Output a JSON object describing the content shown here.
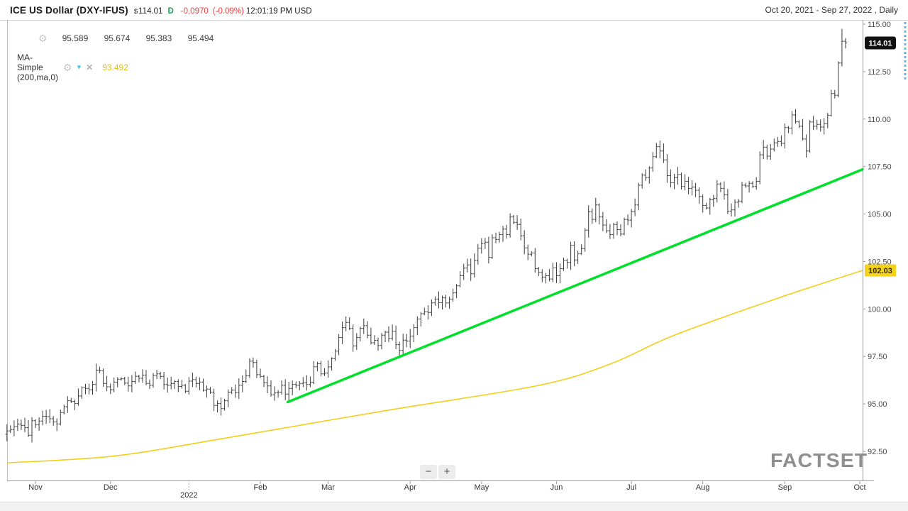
{
  "header": {
    "title": "ICE US Dollar (DXY-IFUS)",
    "currency_symbol": "$",
    "price": "114.01",
    "session_flag": "D",
    "change": "-0.0970",
    "change_pct": "(-0.09%)",
    "time": "12:01:19 PM USD",
    "range": "Oct 20, 2021 - Sep 27, 2022 , Daily"
  },
  "legend": {
    "ohlc": {
      "open": "95.589",
      "high": "95.674",
      "low": "95.383",
      "close": "95.494"
    },
    "ma": {
      "label": "MA-Simple (200,ma,0)",
      "value": "93.492"
    }
  },
  "controls": {
    "zoom_out": "−",
    "zoom_in": "+"
  },
  "watermark": "FACTSET",
  "colors": {
    "bar": "#3d3d3d",
    "trend_line": "#00e02a",
    "ma_line": "#f2cf1b",
    "last_badge_bg": "#111111",
    "last_badge_text": "#ffffff",
    "ma_badge_bg": "#f3d11c",
    "ma_badge_text": "#3a3000",
    "axis_line": "#9a9a9a",
    "axis_text": "#4a4a4a",
    "up_flag_green": "#18a557",
    "change_red": "#f23b3b",
    "scroll_indicator": "#5bb9e5"
  },
  "chart_data": {
    "type": "ohlc-bar",
    "title": "ICE US Dollar (DXY-IFUS)",
    "frequency": "Daily",
    "start": "Oct 20, 2021",
    "end": "Sep 27, 2022",
    "last_price": 114.01,
    "last_price_label": "114.01",
    "ma_last": 102.03,
    "ma_badge_label": "102.03",
    "ylim": [
      91.3,
      115.2
    ],
    "y_ticks": [
      115.0,
      112.5,
      110.0,
      107.5,
      105.0,
      102.5,
      100.0,
      97.5,
      95.0,
      92.5
    ],
    "x_ticks": [
      {
        "label": "Nov",
        "bar_index": 8,
        "is_year": false
      },
      {
        "label": "Dec",
        "bar_index": 29,
        "is_year": false
      },
      {
        "label": "2022",
        "bar_index": 51,
        "is_year": true
      },
      {
        "label": "Feb",
        "bar_index": 71,
        "is_year": false
      },
      {
        "label": "Mar",
        "bar_index": 90,
        "is_year": false
      },
      {
        "label": "Apr",
        "bar_index": 113,
        "is_year": false
      },
      {
        "label": "May",
        "bar_index": 133,
        "is_year": false
      },
      {
        "label": "Jun",
        "bar_index": 154,
        "is_year": false
      },
      {
        "label": "Jul",
        "bar_index": 175,
        "is_year": false
      },
      {
        "label": "Aug",
        "bar_index": 195,
        "is_year": false
      },
      {
        "label": "Sep",
        "bar_index": 218,
        "is_year": false
      },
      {
        "label": "Oct",
        "bar_index": 239,
        "is_year": false
      }
    ],
    "closes": [
      93.58,
      93.65,
      93.8,
      93.94,
      93.87,
      93.75,
      93.35,
      94.12,
      93.9,
      94.1,
      94.35,
      94.33,
      94.22,
      94.05,
      93.95,
      94.55,
      94.85,
      95.17,
      95.13,
      95.02,
      95.42,
      95.85,
      95.82,
      95.75,
      96.03,
      96.78,
      96.75,
      96.08,
      95.9,
      95.75,
      96.15,
      96.3,
      96.32,
      96.1,
      95.95,
      96.18,
      96.45,
      96.35,
      96.52,
      96.08,
      95.98,
      96.5,
      96.58,
      96.45,
      96.02,
      95.98,
      96.08,
      96.18,
      95.92,
      95.98,
      95.67,
      96.2,
      96.28,
      96.08,
      96.15,
      95.72,
      95.78,
      95.62,
      94.92,
      95.02,
      94.75,
      95.17,
      95.62,
      95.73,
      95.6,
      95.98,
      96.18,
      96.48,
      97.25,
      97.18,
      96.54,
      96.45,
      96.12,
      95.95,
      95.48,
      95.58,
      95.62,
      95.98,
      95.52,
      95.82,
      96.03,
      95.98,
      96.08,
      96.12,
      96.02,
      96.15,
      96.95,
      97.12,
      96.58,
      96.62,
      96.95,
      97.38,
      97.78,
      98.5,
      99.02,
      99.29,
      98.98,
      98.05,
      98.5,
      98.98,
      99.12,
      98.62,
      98.22,
      98.35,
      98.08,
      98.62,
      98.78,
      98.45,
      98.82,
      98.12,
      97.82,
      98.36,
      98.31,
      98.57,
      99.02,
      99.47,
      99.75,
      99.85,
      99.82,
      100.32,
      100.52,
      100.33,
      100.58,
      100.32,
      100.52,
      100.85,
      101.22,
      101.75,
      102.15,
      102.32,
      101.85,
      102.55,
      103.2,
      103.45,
      103.52,
      102.72,
      103.75,
      103.66,
      103.92,
      104.21,
      103.92,
      104.85,
      104.56,
      104.45,
      103.85,
      103.22,
      102.88,
      102.95,
      102.12,
      101.92,
      101.68,
      101.75,
      101.58,
      102.16,
      101.75,
      102.12,
      102.55,
      102.45,
      103.35,
      102.58,
      102.92,
      103.18,
      104.15,
      105.12,
      104.72,
      105.48,
      104.85,
      104.42,
      104.12,
      103.92,
      104.45,
      104.18,
      103.95,
      104.72,
      104.68,
      105.12,
      105.48,
      106.52,
      107.05,
      106.92,
      107.42,
      108.02,
      108.55,
      108.32,
      107.85,
      107.02,
      106.65,
      106.92,
      107.08,
      106.45,
      106.72,
      106.35,
      106.42,
      106.25,
      105.92,
      105.45,
      105.32,
      105.75,
      105.82,
      106.58,
      106.35,
      106.02,
      105.15,
      105.22,
      105.62,
      105.68,
      106.52,
      106.48,
      106.62,
      106.45,
      106.72,
      108.12,
      108.52,
      108.05,
      108.42,
      108.75,
      108.82,
      108.72,
      109.55,
      109.52,
      110.22,
      109.85,
      109.62,
      108.95,
      108.32,
      109.85,
      109.62,
      109.72,
      109.58,
      109.75,
      110.2,
      111.35,
      111.25,
      112.95,
      114.1,
      114.01
    ],
    "spike_high": 114.75,
    "trend_line": {
      "x1_frac": 0.328,
      "price1": 95.1,
      "x2_frac": 1.0,
      "price2": 107.35
    },
    "ma_points": [
      [
        0.0,
        91.9
      ],
      [
        0.124,
        92.25
      ],
      [
        0.249,
        93.15
      ],
      [
        0.352,
        93.95
      ],
      [
        0.456,
        94.75
      ],
      [
        0.622,
        95.98
      ],
      [
        0.705,
        97.1
      ],
      [
        0.779,
        98.6
      ],
      [
        0.901,
        100.57
      ],
      [
        1.0,
        102.03
      ]
    ],
    "legend_ohlc": [
      95.589,
      95.674,
      95.383,
      95.494
    ],
    "ma_legend_value": 93.492
  }
}
